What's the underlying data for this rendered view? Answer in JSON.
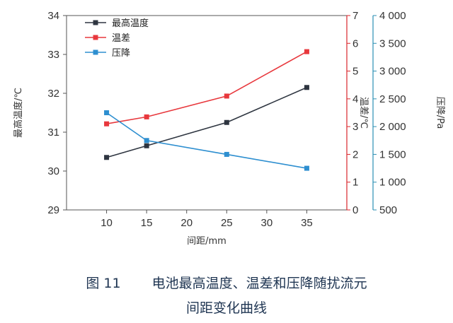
{
  "chart_data": {
    "type": "line",
    "x": [
      10,
      15,
      25,
      35
    ],
    "xlabel": "间距/mm",
    "xticks": [
      "10",
      "15",
      "20",
      "25",
      "30",
      "35"
    ],
    "xlim": [
      5,
      40
    ],
    "axes": {
      "left": {
        "label": "最高温度/℃",
        "ylim": [
          29,
          34
        ],
        "ticks": [
          "29",
          "30",
          "31",
          "32",
          "33",
          "34"
        ],
        "color": "#333333"
      },
      "right1": {
        "label": "温差/℃",
        "ylim": [
          0,
          7
        ],
        "ticks": [
          "0",
          "1",
          "2",
          "3",
          "4",
          "5",
          "6",
          "7"
        ],
        "color": "#d9262b"
      },
      "right2": {
        "label": "压降/Pa",
        "ylim": [
          500,
          4000
        ],
        "ticks": [
          "500",
          "1 000",
          "1 500",
          "2 000",
          "2 500",
          "3 000",
          "3 500",
          "4 000"
        ],
        "color": "#2b8fb3"
      }
    },
    "series": [
      {
        "name": "最高温度",
        "axis": "left",
        "color": "#2e3540",
        "values": [
          30.35,
          30.65,
          31.25,
          32.15
        ]
      },
      {
        "name": "温差",
        "axis": "right1",
        "color": "#e8383d",
        "values": [
          3.1,
          3.35,
          4.1,
          5.7
        ]
      },
      {
        "name": "压降",
        "axis": "right2",
        "color": "#2e8fd0",
        "values": [
          2250,
          1750,
          1500,
          1250
        ]
      }
    ],
    "legend": "top-left"
  },
  "caption": {
    "figure_no": "图 11",
    "line1": "电池最高温度、温差和压降随扰流元",
    "line2": "间距变化曲线"
  }
}
